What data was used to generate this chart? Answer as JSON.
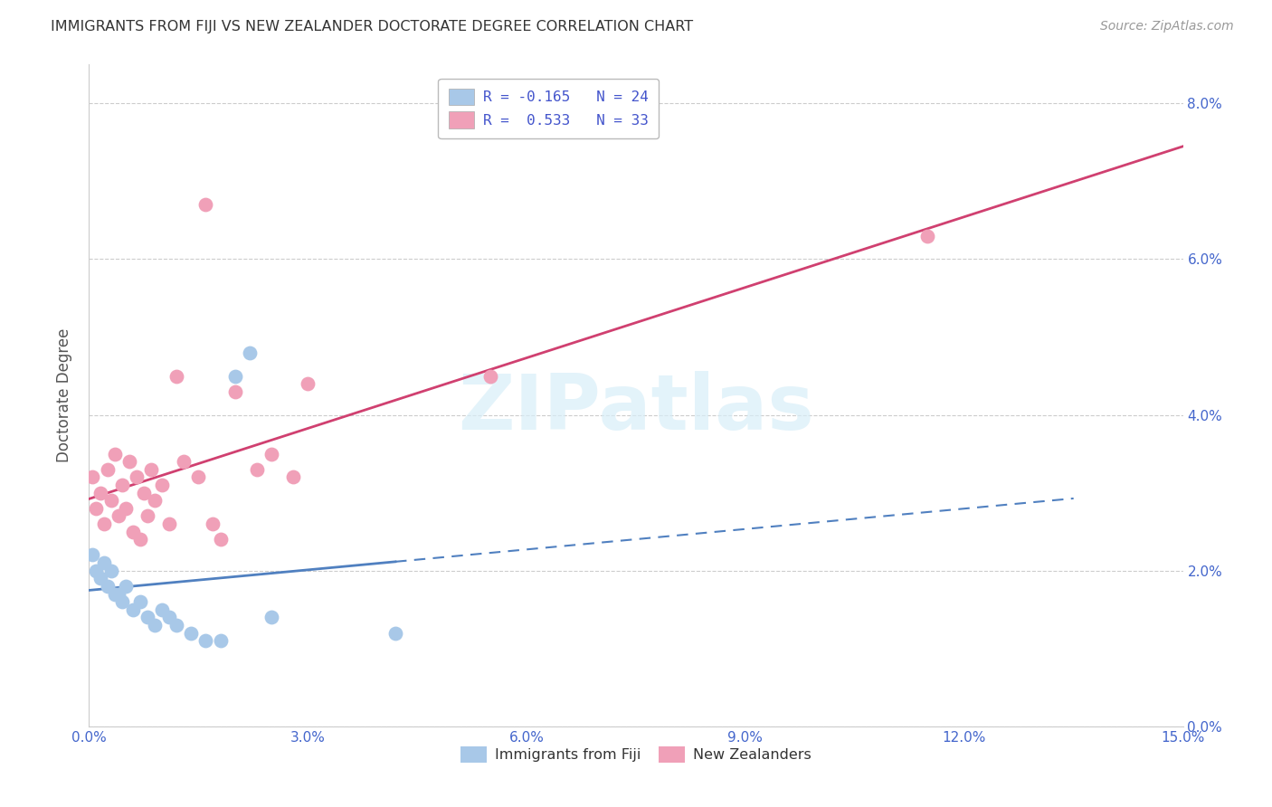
{
  "title": "IMMIGRANTS FROM FIJI VS NEW ZEALANDER DOCTORATE DEGREE CORRELATION CHART",
  "source": "Source: ZipAtlas.com",
  "xlabel_tick_vals": [
    0.0,
    3.0,
    6.0,
    9.0,
    12.0,
    15.0
  ],
  "ylabel_tick_vals": [
    0.0,
    2.0,
    4.0,
    6.0,
    8.0
  ],
  "xlim": [
    0.0,
    15.0
  ],
  "ylim": [
    0.0,
    8.5
  ],
  "fiji_color": "#a8c8e8",
  "fiji_line_color": "#5080c0",
  "nz_color": "#f0a0b8",
  "nz_line_color": "#d04070",
  "ylabel": "Doctorate Degree",
  "watermark_text": "ZIPatlas",
  "legend_label_fiji": "R = -0.165   N = 24",
  "legend_label_nz": "R =  0.533   N = 33",
  "bottom_legend_fiji": "Immigrants from Fiji",
  "bottom_legend_nz": "New Zealanders",
  "fiji_points_x": [
    0.05,
    0.1,
    0.15,
    0.2,
    0.25,
    0.3,
    0.35,
    0.4,
    0.45,
    0.5,
    0.6,
    0.7,
    0.8,
    0.9,
    1.0,
    1.1,
    1.2,
    1.4,
    1.6,
    1.8,
    2.0,
    2.2,
    2.5,
    4.2
  ],
  "fiji_points_y": [
    2.2,
    2.0,
    1.9,
    2.1,
    1.8,
    2.0,
    1.7,
    1.7,
    1.6,
    1.8,
    1.5,
    1.6,
    1.4,
    1.3,
    1.5,
    1.4,
    1.3,
    1.2,
    1.1,
    1.1,
    4.5,
    4.8,
    1.4,
    1.2
  ],
  "nz_points_x": [
    0.05,
    0.1,
    0.15,
    0.2,
    0.25,
    0.3,
    0.35,
    0.4,
    0.45,
    0.5,
    0.55,
    0.6,
    0.65,
    0.7,
    0.75,
    0.8,
    0.85,
    0.9,
    1.0,
    1.1,
    1.2,
    1.3,
    1.5,
    1.8,
    2.0,
    2.3,
    2.5,
    2.8,
    3.0,
    5.5,
    11.5,
    1.6,
    1.7
  ],
  "nz_points_y": [
    3.2,
    2.8,
    3.0,
    2.6,
    3.3,
    2.9,
    3.5,
    2.7,
    3.1,
    2.8,
    3.4,
    2.5,
    3.2,
    2.4,
    3.0,
    2.7,
    3.3,
    2.9,
    3.1,
    2.6,
    4.5,
    3.4,
    3.2,
    2.4,
    4.3,
    3.3,
    3.5,
    3.2,
    4.4,
    4.5,
    6.3,
    6.7,
    2.6
  ]
}
